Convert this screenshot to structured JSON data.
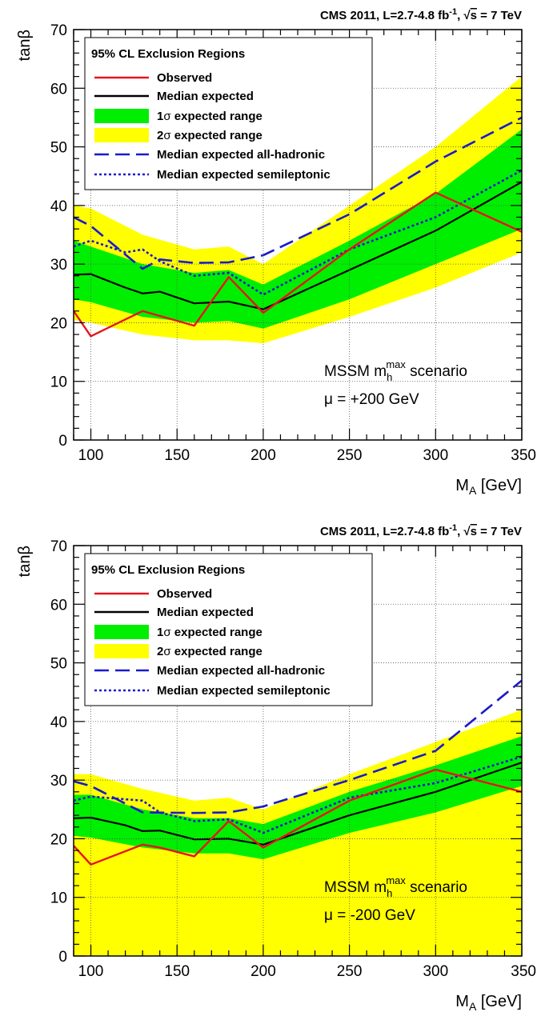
{
  "chart_data": [
    {
      "type": "area",
      "header": "CMS 2011, L=2.7-4.8 fb⁻¹, √s = 7 TeV",
      "xlabel": "M_A [GeV]",
      "ylabel": "tanβ",
      "xlim": [
        90,
        350
      ],
      "ylim": [
        0,
        70
      ],
      "xticks": [
        100,
        150,
        200,
        250,
        300,
        350
      ],
      "yticks": [
        0,
        10,
        20,
        30,
        40,
        50,
        60,
        70
      ],
      "grid": true,
      "legend_position": "top-left",
      "legend_title": "95% CL Exclusion Regions",
      "annotation_line1": "MSSM m_h^max scenario",
      "annotation_line2": "μ = +200 GeV",
      "series": [
        {
          "name": "Observed",
          "style": "solid",
          "color": "#e8141c",
          "x": [
            90,
            100,
            130,
            160,
            180,
            200,
            250,
            300,
            350
          ],
          "y": [
            22,
            17.7,
            22,
            19.5,
            27.8,
            21.7,
            32.5,
            42.2,
            35.5
          ]
        },
        {
          "name": "Median expected",
          "style": "solid",
          "color": "#000000",
          "x": [
            90,
            100,
            120,
            130,
            140,
            160,
            180,
            200,
            250,
            300,
            350
          ],
          "y": [
            28.2,
            28.3,
            26,
            25,
            25.3,
            23.3,
            23.6,
            22.3,
            29,
            35.7,
            44
          ]
        },
        {
          "name": "1σ expected range",
          "style": "band",
          "color": "#00ee00",
          "x": [
            90,
            100,
            130,
            160,
            180,
            200,
            250,
            300,
            350
          ],
          "upper": [
            34,
            33,
            30,
            28.5,
            29,
            26.5,
            34,
            42,
            53
          ],
          "lower": [
            24,
            23.5,
            21,
            20,
            20.3,
            19,
            24,
            30,
            36
          ]
        },
        {
          "name": "2σ expected range",
          "style": "band",
          "color": "#ffff00",
          "x": [
            90,
            100,
            130,
            160,
            180,
            200,
            250,
            300,
            350
          ],
          "upper": [
            40,
            39.5,
            35,
            32.5,
            33,
            30,
            40,
            50,
            62
          ],
          "lower": [
            20.5,
            20,
            18,
            17,
            17,
            16.5,
            21,
            26,
            32
          ]
        },
        {
          "name": "Median expected all-hadronic",
          "style": "dashed",
          "color": "#1a1acc",
          "x": [
            90,
            100,
            130,
            140,
            160,
            180,
            200,
            250,
            300,
            350
          ],
          "y": [
            38,
            36.5,
            29.2,
            30.8,
            30.2,
            30.3,
            31.5,
            38.5,
            47.5,
            55
          ]
        },
        {
          "name": "Median expected semileptonic",
          "style": "dotted",
          "color": "#1a1acc",
          "x": [
            90,
            100,
            120,
            130,
            140,
            160,
            180,
            200,
            250,
            300,
            350
          ],
          "y": [
            33,
            34,
            32,
            32.5,
            30.5,
            28,
            28.5,
            24.8,
            32.5,
            38,
            46
          ]
        }
      ]
    },
    {
      "type": "area",
      "header": "CMS 2011, L=2.7-4.8 fb⁻¹, √s = 7 TeV",
      "xlabel": "M_A [GeV]",
      "ylabel": "tanβ",
      "xlim": [
        90,
        350
      ],
      "ylim": [
        0,
        70
      ],
      "xticks": [
        100,
        150,
        200,
        250,
        300,
        350
      ],
      "yticks": [
        0,
        10,
        20,
        30,
        40,
        50,
        60,
        70
      ],
      "grid": true,
      "legend_position": "top-left",
      "legend_title": "95% CL Exclusion Regions",
      "annotation_line1": "MSSM m_h^max scenario",
      "annotation_line2": "μ = -200 GeV",
      "series": [
        {
          "name": "Observed",
          "style": "solid",
          "color": "#e8141c",
          "x": [
            90,
            100,
            130,
            140,
            160,
            180,
            200,
            250,
            300,
            350
          ],
          "y": [
            18.8,
            15.6,
            19,
            18.5,
            17,
            23,
            18.5,
            26.5,
            31.8,
            28
          ]
        },
        {
          "name": "Median expected",
          "style": "solid",
          "color": "#000000",
          "x": [
            90,
            100,
            120,
            130,
            140,
            160,
            180,
            200,
            250,
            300,
            350
          ],
          "y": [
            23.5,
            23.6,
            22.3,
            21.3,
            21.4,
            19.9,
            20,
            19,
            24,
            28,
            33
          ]
        },
        {
          "name": "1σ expected range",
          "style": "band",
          "color": "#00ee00",
          "x": [
            90,
            100,
            130,
            160,
            180,
            200,
            250,
            300,
            350
          ],
          "upper": [
            27.5,
            27.5,
            25,
            23.5,
            23.5,
            22.5,
            28,
            32.5,
            37.5
          ],
          "lower": [
            20.5,
            20.2,
            18.5,
            17.5,
            17.5,
            16.5,
            21,
            24.5,
            29
          ]
        },
        {
          "name": "2σ expected range",
          "style": "band",
          "color": "#ffff00",
          "x": [
            90,
            100,
            130,
            160,
            180,
            200,
            250,
            300,
            350
          ],
          "upper": [
            31,
            31,
            28.5,
            26.5,
            27,
            25,
            31,
            36.5,
            42
          ]
        },
        {
          "name": "Median expected all-hadronic",
          "style": "dashed",
          "color": "#1a1acc",
          "x": [
            90,
            100,
            130,
            160,
            180,
            200,
            250,
            300,
            350
          ],
          "y": [
            29.8,
            29,
            24.5,
            24.4,
            24.5,
            25.5,
            30,
            35,
            47
          ]
        },
        {
          "name": "Median expected semileptonic",
          "style": "dotted",
          "color": "#1a1acc",
          "x": [
            90,
            100,
            130,
            140,
            160,
            180,
            200,
            250,
            300,
            350
          ],
          "y": [
            26.5,
            27.2,
            26.5,
            24.5,
            23,
            23.3,
            21,
            27,
            29.5,
            34
          ]
        }
      ]
    }
  ]
}
